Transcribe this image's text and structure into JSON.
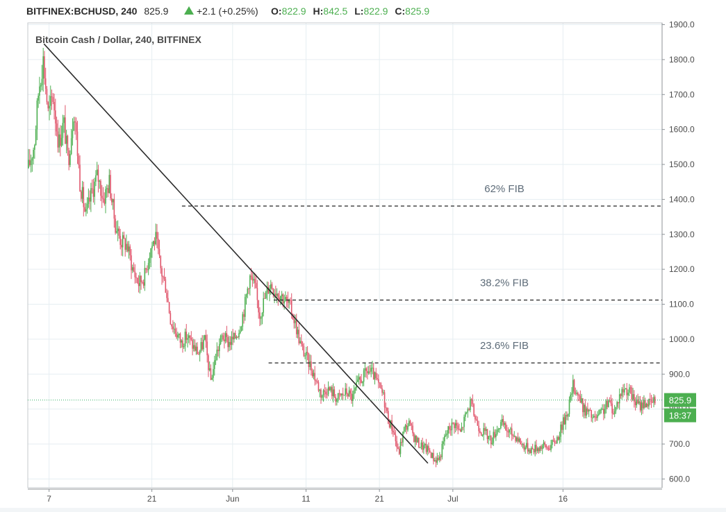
{
  "header": {
    "symbol": "BITFINEX:BCHUSD, 240",
    "last": "825.9",
    "change": "+2.1 (+0.25%)",
    "o_label": "O:",
    "o_value": "822.9",
    "h_label": "H:",
    "h_value": "842.5",
    "l_label": "L:",
    "l_value": "822.9",
    "c_label": "C:",
    "c_value": "825.9"
  },
  "colors": {
    "up": "#4caf50",
    "down": "#e0546a",
    "grid": "#e6eef2",
    "axis": "#4a4a4a",
    "price_tag_bg": "#4caf50",
    "price_line": "#3bb26b"
  },
  "chart_data": {
    "type": "candlestick",
    "title": "Bitcoin Cash / Dollar, 240, BITFINEX",
    "x_ticks": [
      {
        "label": "7",
        "day": 7
      },
      {
        "label": "21",
        "day": 21
      },
      {
        "label": "Jun",
        "day": 32
      },
      {
        "label": "11",
        "day": 42
      },
      {
        "label": "21",
        "day": 52
      },
      {
        "label": "Jul",
        "day": 62
      },
      {
        "label": "16",
        "day": 77
      }
    ],
    "y_ticks": [
      600,
      700,
      800,
      900,
      1000,
      1100,
      1200,
      1300,
      1400,
      1500,
      1600,
      1700,
      1800,
      1900
    ],
    "y_tick_labels": [
      "600.0",
      "700.0",
      "800.0",
      "900.0",
      "1000.0",
      "1100.0",
      "1200.0",
      "1300.0",
      "1400.0",
      "1500.0",
      "1600.0",
      "1700.0",
      "1800.0",
      "1900.0"
    ],
    "ylim": [
      575,
      1905
    ],
    "xlim_days": [
      4.1,
      90.5
    ],
    "current_price": 825.9,
    "current_price_label": "825.9",
    "countdown_label": "18:37",
    "price_path": [
      [
        4.2,
        1490
      ],
      [
        5.0,
        1560
      ],
      [
        5.6,
        1720
      ],
      [
        6.2,
        1800
      ],
      [
        6.9,
        1640
      ],
      [
        7.5,
        1700
      ],
      [
        8.3,
        1560
      ],
      [
        9.0,
        1620
      ],
      [
        9.6,
        1510
      ],
      [
        10.4,
        1660
      ],
      [
        11.2,
        1450
      ],
      [
        12.0,
        1350
      ],
      [
        12.8,
        1420
      ],
      [
        13.6,
        1470
      ],
      [
        14.4,
        1400
      ],
      [
        15.2,
        1450
      ],
      [
        16.0,
        1330
      ],
      [
        16.8,
        1280
      ],
      [
        17.6,
        1270
      ],
      [
        18.4,
        1200
      ],
      [
        19.2,
        1160
      ],
      [
        20.0,
        1180
      ],
      [
        20.8,
        1260
      ],
      [
        21.5,
        1290
      ],
      [
        22.2,
        1200
      ],
      [
        22.9,
        1150
      ],
      [
        23.6,
        1050
      ],
      [
        24.3,
        1020
      ],
      [
        25.0,
        990
      ],
      [
        25.8,
        1010
      ],
      [
        26.6,
        980
      ],
      [
        27.4,
        960
      ],
      [
        28.2,
        1000
      ],
      [
        29.0,
        880
      ],
      [
        29.8,
        960
      ],
      [
        30.6,
        1010
      ],
      [
        31.4,
        990
      ],
      [
        32.2,
        1000
      ],
      [
        32.9,
        1030
      ],
      [
        33.6,
        1090
      ],
      [
        34.3,
        1180
      ],
      [
        35.0,
        1150
      ],
      [
        35.7,
        1070
      ],
      [
        36.4,
        1120
      ],
      [
        37.1,
        1160
      ],
      [
        37.8,
        1140
      ],
      [
        38.5,
        1130
      ],
      [
        39.2,
        1110
      ],
      [
        39.9,
        1090
      ],
      [
        40.6,
        1040
      ],
      [
        41.3,
        980
      ],
      [
        42.0,
        950
      ],
      [
        42.7,
        920
      ],
      [
        43.4,
        880
      ],
      [
        44.1,
        840
      ],
      [
        44.8,
        860
      ],
      [
        45.5,
        850
      ],
      [
        46.2,
        830
      ],
      [
        46.9,
        840
      ],
      [
        47.6,
        850
      ],
      [
        48.3,
        830
      ],
      [
        49.0,
        870
      ],
      [
        49.7,
        890
      ],
      [
        50.4,
        910
      ],
      [
        51.1,
        900
      ],
      [
        51.8,
        870
      ],
      [
        52.5,
        840
      ],
      [
        53.2,
        770
      ],
      [
        53.9,
        740
      ],
      [
        54.6,
        670
      ],
      [
        55.3,
        740
      ],
      [
        56.0,
        760
      ],
      [
        56.7,
        720
      ],
      [
        57.4,
        700
      ],
      [
        58.1,
        690
      ],
      [
        58.8,
        680
      ],
      [
        59.5,
        655
      ],
      [
        60.2,
        660
      ],
      [
        60.9,
        720
      ],
      [
        61.6,
        750
      ],
      [
        62.3,
        760
      ],
      [
        63.0,
        730
      ],
      [
        63.7,
        780
      ],
      [
        64.4,
        820
      ],
      [
        65.1,
        770
      ],
      [
        65.8,
        740
      ],
      [
        66.5,
        730
      ],
      [
        67.2,
        710
      ],
      [
        67.9,
        740
      ],
      [
        68.6,
        760
      ],
      [
        69.3,
        740
      ],
      [
        70.0,
        730
      ],
      [
        70.7,
        720
      ],
      [
        71.4,
        700
      ],
      [
        72.1,
        690
      ],
      [
        72.8,
        685
      ],
      [
        73.5,
        690
      ],
      [
        74.2,
        695
      ],
      [
        74.9,
        690
      ],
      [
        75.6,
        700
      ],
      [
        76.3,
        720
      ],
      [
        77.0,
        760
      ],
      [
        77.7,
        800
      ],
      [
        78.4,
        870
      ],
      [
        79.1,
        840
      ],
      [
        79.8,
        800
      ],
      [
        80.5,
        790
      ],
      [
        81.2,
        770
      ],
      [
        81.9,
        780
      ],
      [
        82.6,
        800
      ],
      [
        83.3,
        820
      ],
      [
        84.0,
        790
      ],
      [
        84.7,
        840
      ],
      [
        85.4,
        860
      ],
      [
        86.1,
        850
      ],
      [
        86.8,
        820
      ],
      [
        87.5,
        810
      ],
      [
        88.2,
        820
      ],
      [
        88.9,
        815
      ],
      [
        89.6,
        825.9
      ]
    ],
    "trendline": {
      "start": [
        6.3,
        1845
      ],
      "end": [
        58.6,
        645
      ]
    },
    "fib_levels": [
      {
        "label": "62% FIB",
        "value": 1381,
        "start_day": 25.1
      },
      {
        "label": "38.2% FIB",
        "value": 1112,
        "start_day": 37.6
      },
      {
        "label": "23.6% FIB",
        "value": 932,
        "start_day": 36.9
      }
    ]
  }
}
